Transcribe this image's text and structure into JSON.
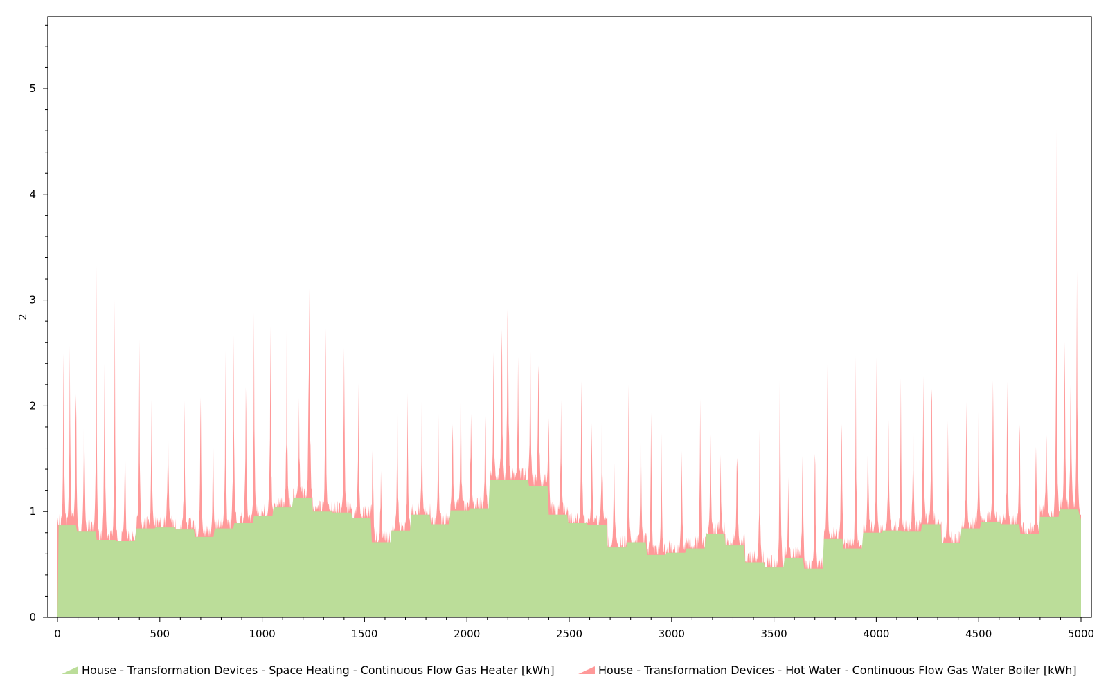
{
  "chart_data": {
    "type": "area",
    "stacked": true,
    "title": "",
    "xlabel": "",
    "ylabel": "2",
    "xlim": [
      0,
      5000
    ],
    "ylim": [
      0,
      5.7
    ],
    "x_ticks": [
      0,
      500,
      1000,
      1500,
      2000,
      2500,
      3000,
      3500,
      4000,
      4500,
      5000
    ],
    "y_ticks": [
      0,
      1,
      2,
      3,
      4,
      5
    ],
    "x_max": 5000,
    "legend_position": "bottom",
    "series": [
      {
        "name": "House - Transformation Devices - Space Heating - Continuous Flow Gas Heater [kWh]",
        "color": "#bbdd99",
        "type": "step",
        "steps": [
          [
            0,
            0.87
          ],
          [
            96,
            0.81
          ],
          [
            192,
            0.73
          ],
          [
            288,
            0.72
          ],
          [
            384,
            0.84
          ],
          [
            480,
            0.85
          ],
          [
            576,
            0.83
          ],
          [
            672,
            0.76
          ],
          [
            768,
            0.84
          ],
          [
            864,
            0.89
          ],
          [
            960,
            0.96
          ],
          [
            1056,
            1.04
          ],
          [
            1152,
            1.13
          ],
          [
            1248,
            1.0
          ],
          [
            1344,
            0.99
          ],
          [
            1440,
            0.94
          ],
          [
            1536,
            0.71
          ],
          [
            1632,
            0.82
          ],
          [
            1728,
            0.97
          ],
          [
            1824,
            0.88
          ],
          [
            1920,
            1.01
          ],
          [
            2016,
            1.03
          ],
          [
            2112,
            1.3
          ],
          [
            2208,
            1.3
          ],
          [
            2304,
            1.24
          ],
          [
            2400,
            0.97
          ],
          [
            2496,
            0.89
          ],
          [
            2592,
            0.87
          ],
          [
            2688,
            0.66
          ],
          [
            2784,
            0.71
          ],
          [
            2880,
            0.59
          ],
          [
            2976,
            0.61
          ],
          [
            3072,
            0.65
          ],
          [
            3168,
            0.79
          ],
          [
            3264,
            0.68
          ],
          [
            3360,
            0.52
          ],
          [
            3456,
            0.47
          ],
          [
            3552,
            0.56
          ],
          [
            3648,
            0.46
          ],
          [
            3744,
            0.74
          ],
          [
            3840,
            0.65
          ],
          [
            3936,
            0.8
          ],
          [
            4032,
            0.82
          ],
          [
            4128,
            0.81
          ],
          [
            4224,
            0.88
          ],
          [
            4320,
            0.7
          ],
          [
            4416,
            0.84
          ],
          [
            4512,
            0.9
          ],
          [
            4608,
            0.88
          ],
          [
            4704,
            0.79
          ],
          [
            4800,
            0.95
          ],
          [
            4896,
            1.02
          ],
          [
            4992,
            0.97
          ]
        ]
      },
      {
        "name": "House - Transformation Devices - Hot Water - Continuous Flow Gas Water Boiler [kWh]",
        "color": "#ff9999",
        "type": "spikes",
        "baseline_noise": 0.12,
        "peaks": [
          [
            30,
            2.2
          ],
          [
            60,
            2.3
          ],
          [
            90,
            2.1
          ],
          [
            130,
            1.8
          ],
          [
            190,
            2.6
          ],
          [
            230,
            2.6
          ],
          [
            280,
            2.3
          ],
          [
            330,
            1.3
          ],
          [
            400,
            1.9
          ],
          [
            460,
            1.5
          ],
          [
            540,
            1.7
          ],
          [
            620,
            1.5
          ],
          [
            700,
            2.2
          ],
          [
            760,
            1.3
          ],
          [
            820,
            1.8
          ],
          [
            860,
            2.6
          ],
          [
            920,
            2.0
          ],
          [
            960,
            2.0
          ],
          [
            1040,
            2.4
          ],
          [
            1120,
            1.9
          ],
          [
            1180,
            1.2
          ],
          [
            1230,
            3.5
          ],
          [
            1310,
            2.0
          ],
          [
            1400,
            2.0
          ],
          [
            1470,
            1.5
          ],
          [
            1540,
            1.5
          ],
          [
            1580,
            1.0
          ],
          [
            1660,
            1.7
          ],
          [
            1710,
            1.5
          ],
          [
            1780,
            1.4
          ],
          [
            1860,
            1.4
          ],
          [
            1930,
            1.3
          ],
          [
            1970,
            1.7
          ],
          [
            2020,
            1.5
          ],
          [
            2090,
            1.4
          ],
          [
            2130,
            1.4
          ],
          [
            2170,
            2.3
          ],
          [
            2200,
            3.0
          ],
          [
            2250,
            1.3
          ],
          [
            2310,
            1.9
          ],
          [
            2350,
            1.9
          ],
          [
            2400,
            1.2
          ],
          [
            2460,
            1.5
          ],
          [
            2560,
            1.8
          ],
          [
            2610,
            1.3
          ],
          [
            2660,
            1.6
          ],
          [
            2720,
            1.4
          ],
          [
            2790,
            1.6
          ],
          [
            2850,
            1.8
          ],
          [
            2900,
            1.6
          ],
          [
            2950,
            1.6
          ],
          [
            3050,
            1.7
          ],
          [
            3140,
            1.6
          ],
          [
            3190,
            1.5
          ],
          [
            3240,
            1.0
          ],
          [
            3320,
            1.5
          ],
          [
            3430,
            1.4
          ],
          [
            3530,
            3.1
          ],
          [
            3570,
            1.0
          ],
          [
            3640,
            1.5
          ],
          [
            3700,
            1.9
          ],
          [
            3760,
            1.8
          ],
          [
            3830,
            1.9
          ],
          [
            3900,
            1.9
          ],
          [
            3960,
            1.5
          ],
          [
            4000,
            1.7
          ],
          [
            4060,
            1.5
          ],
          [
            4120,
            1.5
          ],
          [
            4180,
            1.7
          ],
          [
            4230,
            2.1
          ],
          [
            4270,
            2.2
          ],
          [
            4350,
            1.7
          ],
          [
            4440,
            1.6
          ],
          [
            4500,
            1.8
          ],
          [
            4570,
            1.8
          ],
          [
            4640,
            1.8
          ],
          [
            4700,
            1.6
          ],
          [
            4780,
            1.2
          ],
          [
            4830,
            1.4
          ],
          [
            4880,
            3.7
          ],
          [
            4920,
            2.1
          ],
          [
            4950,
            2.3
          ],
          [
            4980,
            2.5
          ]
        ]
      }
    ]
  }
}
